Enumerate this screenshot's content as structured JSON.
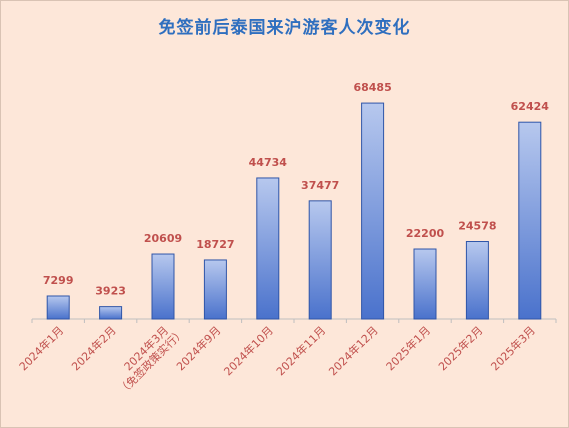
{
  "chart_data": {
    "type": "bar",
    "title": "免签前后泰国来沪游客人次变化",
    "xlabel": "",
    "ylabel": "",
    "ylim": [
      0,
      72000
    ],
    "grid": false,
    "legend": "none",
    "categories": [
      "2024年1月",
      "2024年2月",
      "2024年3月\n（免签政策实行）",
      "2024年9月",
      "2024年10月",
      "2024年11月",
      "2024年12月",
      "2025年1月",
      "2025年2月",
      "2025年3月"
    ],
    "values": [
      7299,
      3923,
      20609,
      18727,
      44734,
      37477,
      68485,
      22200,
      24578,
      62424
    ],
    "colors": {
      "background": "#fde7d9",
      "bar_top": "#b7c8ee",
      "bar_bottom": "#4a72cc",
      "bar_border": "#2f55a8",
      "labels": "#c0504d",
      "title": "#2f6fbf",
      "axis": "#bfbfbf"
    }
  }
}
